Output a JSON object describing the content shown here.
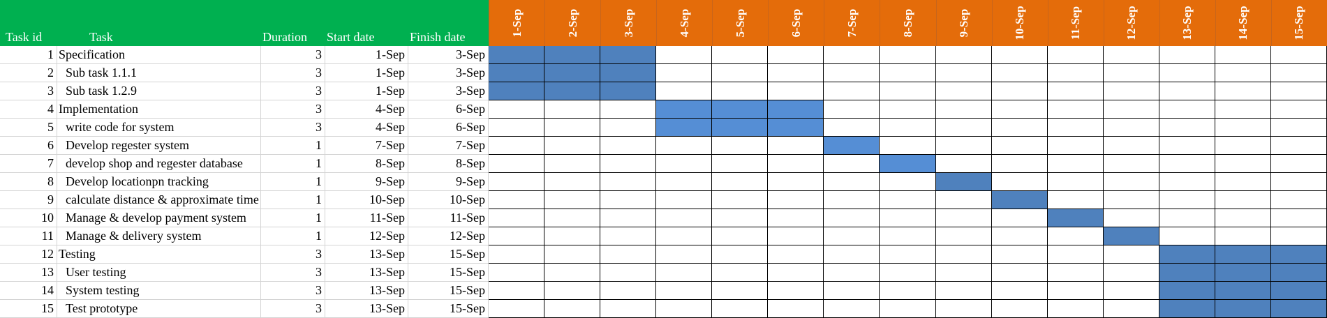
{
  "headers": {
    "task_id": "Task id",
    "task": "Task",
    "duration": "Duration",
    "start": "Start  date",
    "finish": "Finish date"
  },
  "colors": {
    "header_left": "#00b050",
    "header_dates": "#e46c0a",
    "bar_dark": "#4f81bd",
    "bar_light": "#558ed5"
  },
  "chart_data": {
    "type": "table",
    "dates": [
      "1-Sep",
      "2-Sep",
      "3-Sep",
      "4-Sep",
      "5-Sep",
      "6-Sep",
      "7-Sep",
      "8-Sep",
      "9-Sep",
      "10-Sep",
      "11-Sep",
      "12-Sep",
      "13-Sep",
      "14-Sep",
      "15-Sep"
    ],
    "tasks": [
      {
        "id": "1",
        "name": "Specification",
        "indent": false,
        "duration": "3",
        "start": "1-Sep",
        "finish": "3-Sep",
        "start_index": 0,
        "days": 3,
        "shade": "dark"
      },
      {
        "id": "2",
        "name": "Sub task 1.1.1",
        "indent": true,
        "duration": "3",
        "start": "1-Sep",
        "finish": "3-Sep",
        "start_index": 0,
        "days": 3,
        "shade": "dark"
      },
      {
        "id": "3",
        "name": "Sub task 1.2.9",
        "indent": true,
        "duration": "3",
        "start": "1-Sep",
        "finish": "3-Sep",
        "start_index": 0,
        "days": 3,
        "shade": "dark"
      },
      {
        "id": "4",
        "name": "Implementation",
        "indent": false,
        "duration": "3",
        "start": "4-Sep",
        "finish": "6-Sep",
        "start_index": 3,
        "days": 3,
        "shade": "light"
      },
      {
        "id": "5",
        "name": "write code for system",
        "indent": true,
        "duration": "3",
        "start": "4-Sep",
        "finish": "6-Sep",
        "start_index": 3,
        "days": 3,
        "shade": "light"
      },
      {
        "id": "6",
        "name": "Develop regester system",
        "indent": true,
        "duration": "1",
        "start": "7-Sep",
        "finish": "7-Sep",
        "start_index": 6,
        "days": 1,
        "shade": "light"
      },
      {
        "id": "7",
        "name": "develop shop and regester database",
        "indent": true,
        "duration": "1",
        "start": "8-Sep",
        "finish": "8-Sep",
        "start_index": 7,
        "days": 1,
        "shade": "light"
      },
      {
        "id": "8",
        "name": "Develop locationpn tracking",
        "indent": true,
        "duration": "1",
        "start": "9-Sep",
        "finish": "9-Sep",
        "start_index": 8,
        "days": 1,
        "shade": "dark"
      },
      {
        "id": "9",
        "name": "calculate distance & approximate time",
        "indent": true,
        "duration": "1",
        "start": "10-Sep",
        "finish": "10-Sep",
        "start_index": 9,
        "days": 1,
        "shade": "dark"
      },
      {
        "id": "10",
        "name": "Manage & develop payment system",
        "indent": true,
        "duration": "1",
        "start": "11-Sep",
        "finish": "11-Sep",
        "start_index": 10,
        "days": 1,
        "shade": "dark"
      },
      {
        "id": "11",
        "name": "Manage & delivery system",
        "indent": true,
        "duration": "1",
        "start": "12-Sep",
        "finish": "12-Sep",
        "start_index": 11,
        "days": 1,
        "shade": "dark"
      },
      {
        "id": "12",
        "name": "Testing",
        "indent": false,
        "duration": "3",
        "start": "13-Sep",
        "finish": "15-Sep",
        "start_index": 12,
        "days": 3,
        "shade": "dark"
      },
      {
        "id": "13",
        "name": "User testing",
        "indent": true,
        "duration": "3",
        "start": "13-Sep",
        "finish": "15-Sep",
        "start_index": 12,
        "days": 3,
        "shade": "dark"
      },
      {
        "id": "14",
        "name": "System testing",
        "indent": true,
        "duration": "3",
        "start": "13-Sep",
        "finish": "15-Sep",
        "start_index": 12,
        "days": 3,
        "shade": "dark"
      },
      {
        "id": "15",
        "name": "Test prototype",
        "indent": true,
        "duration": "3",
        "start": "13-Sep",
        "finish": "15-Sep",
        "start_index": 12,
        "days": 3,
        "shade": "dark"
      }
    ]
  }
}
